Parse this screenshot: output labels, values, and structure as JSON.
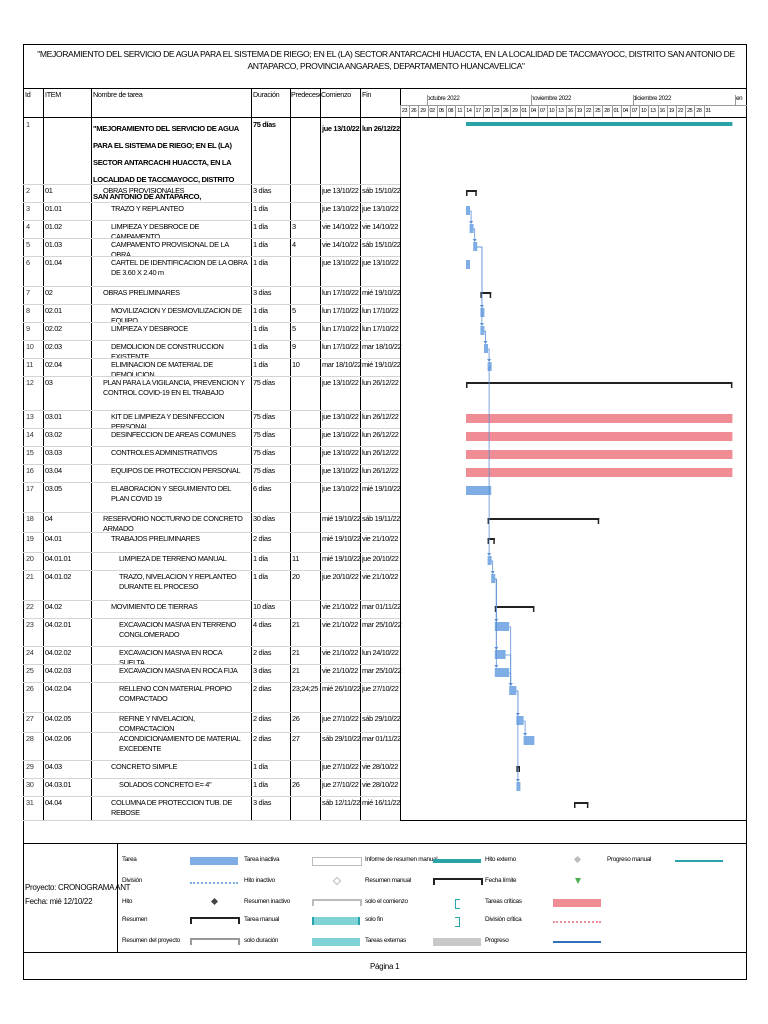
{
  "document": {
    "title": "\"MEJORAMIENTO DEL SERVICIO DE AGUA PARA EL SISTEMA DE RIEGO; EN EL (LA) SECTOR ANTARCACHI HUACCTA, EN LA LOCALIDAD DE TACCMAYOCC, DISTRITO SAN ANTONIO DE ANTAPARCO, PROVINCIA ANGARAES, DEPARTAMENTO HUANCAVELICA\"",
    "page_label": "Página 1"
  },
  "columns": {
    "id": "Id",
    "item": "ITEM",
    "name": "Nombre de tarea",
    "duration": "Duración",
    "predecessors": "Predecesoras",
    "start": "Comienzo",
    "end": "Fin"
  },
  "timeline": {
    "months": [
      "octubre 2022",
      "noviembre 2022",
      "diciembre 2022",
      "en"
    ],
    "days": [
      "23",
      "26",
      "29",
      "02",
      "05",
      "08",
      "11",
      "14",
      "17",
      "20",
      "23",
      "26",
      "29",
      "01",
      "04",
      "07",
      "10",
      "13",
      "16",
      "19",
      "22",
      "25",
      "28",
      "01",
      "04",
      "07",
      "10",
      "13",
      "16",
      "19",
      "22",
      "25",
      "28",
      "31"
    ]
  },
  "tasks": [
    {
      "id": "1",
      "item": "",
      "name": "\"MEJORAMIENTO DEL SERVICIO DE AGUA PARA EL SISTEMA DE RIEGO; EN EL (LA) SECTOR ANTARCACHI HUACCTA, EN LA LOCALIDAD DE TACCMAYOCC, DISTRITO SAN ANTONIO DE ANTAPARCO,",
      "duration": "75 días",
      "pred": "",
      "start": "jue 13/10/22",
      "end": "lun 26/12/22",
      "level": 0,
      "type": "project",
      "startDay": 0,
      "endDay": 74
    },
    {
      "id": "2",
      "item": "01",
      "name": "OBRAS PROVISIONALES",
      "duration": "3 días",
      "pred": "",
      "start": "jue 13/10/22",
      "end": "sáb 15/10/22",
      "level": 1,
      "type": "summary",
      "startDay": 0,
      "endDay": 3
    },
    {
      "id": "3",
      "item": "01.01",
      "name": "TRAZO Y REPLANTEO",
      "duration": "1 día",
      "pred": "",
      "start": "jue 13/10/22",
      "end": "jue 13/10/22",
      "level": 2,
      "type": "task",
      "startDay": 0,
      "endDay": 1
    },
    {
      "id": "4",
      "item": "01.02",
      "name": "LIMPIEZA Y DESBROCE DE CAMPAMENTO",
      "duration": "1 día",
      "pred": "3",
      "start": "vie 14/10/22",
      "end": "vie 14/10/22",
      "level": 2,
      "type": "task",
      "startDay": 1,
      "endDay": 2
    },
    {
      "id": "5",
      "item": "01.03",
      "name": "CAMPAMENTO PROVISIONAL DE LA OBRA",
      "duration": "1 día",
      "pred": "4",
      "start": "vie 14/10/22",
      "end": "sáb 15/10/22",
      "level": 2,
      "type": "task",
      "startDay": 2,
      "endDay": 3
    },
    {
      "id": "6",
      "item": "01.04",
      "name": "CARTEL DE IDENTIFICACION DE LA OBRA DE 3.60 X 2.40 m",
      "duration": "1 día",
      "pred": "",
      "start": "jue 13/10/22",
      "end": "jue 13/10/22",
      "level": 2,
      "type": "task",
      "startDay": 0,
      "endDay": 1
    },
    {
      "id": "7",
      "item": "02",
      "name": "OBRAS PRELIMINARES",
      "duration": "3 días",
      "pred": "",
      "start": "lun 17/10/22",
      "end": "mié 19/10/22",
      "level": 1,
      "type": "summary",
      "startDay": 4,
      "endDay": 7
    },
    {
      "id": "8",
      "item": "02.01",
      "name": "MOVILIZACION Y DESMOVILIZACION DE EQUIPO",
      "duration": "1 día",
      "pred": "5",
      "start": "lun 17/10/22",
      "end": "lun 17/10/22",
      "level": 2,
      "type": "task",
      "startDay": 4,
      "endDay": 5
    },
    {
      "id": "9",
      "item": "02.02",
      "name": "LIMPIEZA Y DESBROCE",
      "duration": "1 día",
      "pred": "5",
      "start": "lun 17/10/22",
      "end": "lun 17/10/22",
      "level": 2,
      "type": "task",
      "startDay": 4,
      "endDay": 5
    },
    {
      "id": "10",
      "item": "02.03",
      "name": "DEMOLICION DE CONSTRUCCION EXISTENTE",
      "duration": "1 día",
      "pred": "9",
      "start": "lun 17/10/22",
      "end": "mar 18/10/22",
      "level": 2,
      "type": "task",
      "startDay": 5,
      "endDay": 6
    },
    {
      "id": "11",
      "item": "02.04",
      "name": "ELIMINACION DE MATERIAL DE DEMOLICION",
      "duration": "1 día",
      "pred": "10",
      "start": "mar 18/10/22",
      "end": "mié 19/10/22",
      "level": 2,
      "type": "task",
      "startDay": 6,
      "endDay": 7
    },
    {
      "id": "12",
      "item": "03",
      "name": "PLAN PARA LA VIGILANCIA, PREVENCION Y CONTROL COVID-19 EN EL TRABAJO",
      "duration": "75 días",
      "pred": "",
      "start": "jue 13/10/22",
      "end": "lun 26/12/22",
      "level": 1,
      "type": "summary",
      "startDay": 0,
      "endDay": 74
    },
    {
      "id": "13",
      "item": "03.01",
      "name": "KIT DE LIMPIEZA Y DESINFECCION PERSONAL",
      "duration": "75 días",
      "pred": "",
      "start": "jue 13/10/22",
      "end": "lun 26/12/22",
      "level": 2,
      "type": "critical",
      "startDay": 0,
      "endDay": 74
    },
    {
      "id": "14",
      "item": "03.02",
      "name": "DESINFECCION DE AREAS COMUNES",
      "duration": "75 días",
      "pred": "",
      "start": "jue 13/10/22",
      "end": "lun 26/12/22",
      "level": 2,
      "type": "critical",
      "startDay": 0,
      "endDay": 74
    },
    {
      "id": "15",
      "item": "03.03",
      "name": "CONTROLES ADMINISTRATIVOS",
      "duration": "75 días",
      "pred": "",
      "start": "jue 13/10/22",
      "end": "lun 26/12/22",
      "level": 2,
      "type": "critical",
      "startDay": 0,
      "endDay": 74
    },
    {
      "id": "16",
      "item": "03.04",
      "name": "EQUIPOS DE PROTECCION PERSONAL",
      "duration": "75 días",
      "pred": "",
      "start": "jue 13/10/22",
      "end": "lun 26/12/22",
      "level": 2,
      "type": "critical",
      "startDay": 0,
      "endDay": 74
    },
    {
      "id": "17",
      "item": "03.05",
      "name": "ELABORACION Y SEGUIMIENTO DEL PLAN COVID 19",
      "duration": "6 días",
      "pred": "",
      "start": "jue 13/10/22",
      "end": "mié 19/10/22",
      "level": 2,
      "type": "task",
      "startDay": 0,
      "endDay": 7
    },
    {
      "id": "18",
      "item": "04",
      "name": "RESERVORIO NOCTURNO DE CONCRETO ARMADO",
      "duration": "30 días",
      "pred": "",
      "start": "mié 19/10/22",
      "end": "sáb 19/11/22",
      "level": 1,
      "type": "summary",
      "startDay": 6,
      "endDay": 37
    },
    {
      "id": "19",
      "item": "04.01",
      "name": "TRABAJOS PRELIMINARES",
      "duration": "2 días",
      "pred": "",
      "start": "mié 19/10/22",
      "end": "vie 21/10/22",
      "level": 2,
      "type": "summary",
      "startDay": 6,
      "endDay": 8
    },
    {
      "id": "20",
      "item": "04.01.01",
      "name": "LIMPIEZA DE TERRENO MANUAL",
      "duration": "1 día",
      "pred": "11",
      "start": "mié 19/10/22",
      "end": "jue 20/10/22",
      "level": 3,
      "type": "task",
      "startDay": 6,
      "endDay": 7
    },
    {
      "id": "21",
      "item": "04.01.02",
      "name": "TRAZO, NIVELACION Y REPLANTEO DURANTE EL PROCESO",
      "duration": "1 día",
      "pred": "20",
      "start": "jue 20/10/22",
      "end": "vie 21/10/22",
      "level": 3,
      "type": "task",
      "startDay": 7,
      "endDay": 8
    },
    {
      "id": "22",
      "item": "04.02",
      "name": "MOVIMIENTO DE TIERRAS",
      "duration": "10 días",
      "pred": "",
      "start": "vie 21/10/22",
      "end": "mar 01/11/22",
      "level": 2,
      "type": "summary",
      "startDay": 8,
      "endDay": 19
    },
    {
      "id": "23",
      "item": "04.02.01",
      "name": "EXCAVACION MASIVA EN TERRENO CONGLOMERADO",
      "duration": "4 días",
      "pred": "21",
      "start": "vie 21/10/22",
      "end": "mar 25/10/22",
      "level": 3,
      "type": "task",
      "startDay": 8,
      "endDay": 12
    },
    {
      "id": "24",
      "item": "04.02.02",
      "name": "EXCAVACION MASIVA EN ROCA SUELTA",
      "duration": "2 días",
      "pred": "21",
      "start": "vie 21/10/22",
      "end": "lun 24/10/22",
      "level": 3,
      "type": "task",
      "startDay": 8,
      "endDay": 11
    },
    {
      "id": "25",
      "item": "04.02.03",
      "name": "EXCAVACION MASIVA EN ROCA FIJA",
      "duration": "3 días",
      "pred": "21",
      "start": "vie 21/10/22",
      "end": "mar 25/10/22",
      "level": 3,
      "type": "task",
      "startDay": 8,
      "endDay": 12
    },
    {
      "id": "26",
      "item": "04.02.04",
      "name": "RELLENO CON MATERIAL PROPIO COMPACTADO",
      "duration": "2 días",
      "pred": "23;24;25",
      "start": "mié 26/10/22",
      "end": "jue 27/10/22",
      "level": 3,
      "type": "task",
      "startDay": 12,
      "endDay": 14
    },
    {
      "id": "27",
      "item": "04.02.05",
      "name": "REFINE Y NIVELACION, COMPACTACION",
      "duration": "2 días",
      "pred": "26",
      "start": "jue 27/10/22",
      "end": "sáb 29/10/22",
      "level": 3,
      "type": "task",
      "startDay": 14,
      "endDay": 16
    },
    {
      "id": "28",
      "item": "04.02.06",
      "name": "ACONDICIONAMIENTO DE MATERIAL EXCEDENTE",
      "duration": "2 días",
      "pred": "27",
      "start": "sáb 29/10/22",
      "end": "mar 01/11/22",
      "level": 3,
      "type": "task",
      "startDay": 16,
      "endDay": 19
    },
    {
      "id": "29",
      "item": "04.03",
      "name": "CONCRETO SIMPLE",
      "duration": "1 día",
      "pred": "",
      "start": "jue 27/10/22",
      "end": "vie 28/10/22",
      "level": 2,
      "type": "summary",
      "startDay": 14,
      "endDay": 15
    },
    {
      "id": "30",
      "item": "04.03.01",
      "name": "SOLADOS CONCRETO E= 4\"",
      "duration": "1 día",
      "pred": "26",
      "start": "jue 27/10/22",
      "end": "vie 28/10/22",
      "level": 3,
      "type": "task",
      "startDay": 14,
      "endDay": 15
    },
    {
      "id": "31",
      "item": "04.04",
      "name": "COLUMNA DE PROTECCION TUB. DE REBOSE",
      "duration": "3 días",
      "pred": "",
      "start": "sáb 12/11/22",
      "end": "mié 16/11/22",
      "level": 2,
      "type": "summary",
      "startDay": 30,
      "endDay": 34
    }
  ],
  "legend": {
    "project_label": "Proyecto: CRONOGRAMA ANT",
    "date_label": "Fecha: mié 12/10/22",
    "items": [
      {
        "label": "Tarea",
        "kind": "task"
      },
      {
        "label": "Tarea inactiva",
        "kind": "inactive-task"
      },
      {
        "label": "Informe de resumen manual",
        "kind": "manual-summary-report"
      },
      {
        "label": "Hito externo",
        "kind": "external-milestone"
      },
      {
        "label": "Progreso manual",
        "kind": "manual-progress"
      },
      {
        "label": "División",
        "kind": "split"
      },
      {
        "label": "Hito inactivo",
        "kind": "inactive-milestone"
      },
      {
        "label": "Resumen manual",
        "kind": "manual-summary"
      },
      {
        "label": "Fecha límite",
        "kind": "deadline"
      },
      {
        "label": "Hito",
        "kind": "milestone"
      },
      {
        "label": "Resumen inactivo",
        "kind": "inactive-summary"
      },
      {
        "label": "solo el comienzo",
        "kind": "start-only"
      },
      {
        "label": "Tareas críticas",
        "kind": "critical-tasks"
      },
      {
        "label": "Resumen",
        "kind": "summary"
      },
      {
        "label": "Tarea manual",
        "kind": "manual-task"
      },
      {
        "label": "solo fin",
        "kind": "finish-only"
      },
      {
        "label": "División crítica",
        "kind": "critical-split"
      },
      {
        "label": "Resumen del proyecto",
        "kind": "project-summary"
      },
      {
        "label": "solo duración",
        "kind": "duration-only"
      },
      {
        "label": "Tareas externas",
        "kind": "external-tasks"
      },
      {
        "label": "Progreso",
        "kind": "progress"
      }
    ]
  },
  "colors": {
    "task": "#7eaee5",
    "critical": "#f08c93",
    "project": "#2aa3a8",
    "summary": "#222222",
    "arrow": "#5b8fd6"
  }
}
